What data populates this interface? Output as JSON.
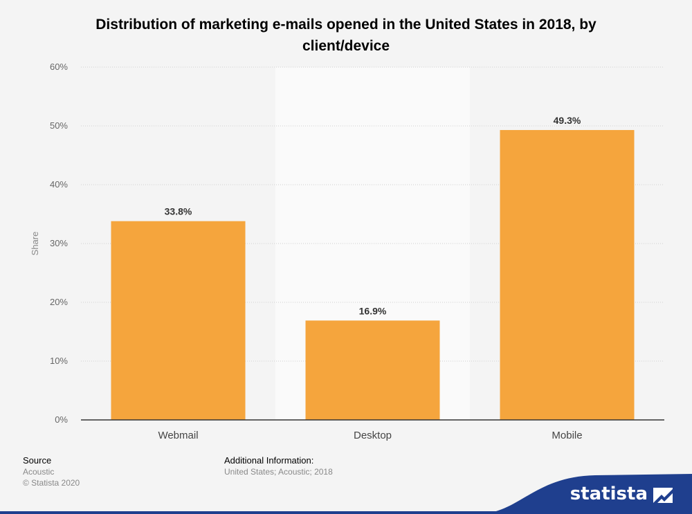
{
  "title": "Distribution of marketing e-mails opened in the United States in 2018, by client/device",
  "chart_data": {
    "type": "bar",
    "categories": [
      "Webmail",
      "Desktop",
      "Mobile"
    ],
    "values": [
      33.8,
      16.9,
      49.3
    ],
    "value_labels": [
      "33.8%",
      "16.9%",
      "49.3%"
    ],
    "ylabel": "Share",
    "xlabel": "",
    "ylim": [
      0,
      60
    ],
    "yticks": [
      0,
      10,
      20,
      30,
      40,
      50,
      60
    ],
    "ytick_labels": [
      "0%",
      "10%",
      "20%",
      "30%",
      "40%",
      "50%",
      "60%"
    ],
    "grid": true,
    "highlighted_category": "Desktop",
    "bar_color": "#f5a53d"
  },
  "footer": {
    "source_heading": "Source",
    "source": "Acoustic",
    "copyright": "© Statista 2020",
    "info_heading": "Additional Information:",
    "info": "United States; Acoustic; 2018"
  },
  "brand": {
    "name": "statista",
    "color": "#1f3f8e"
  }
}
